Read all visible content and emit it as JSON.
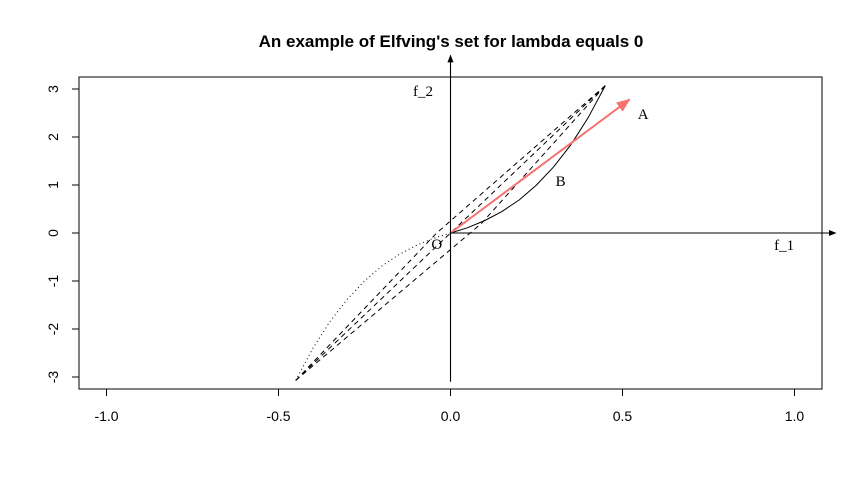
{
  "chart_data": {
    "type": "line",
    "title": "An example of Elfving's set for lambda equals 0",
    "xlabel": "",
    "ylabel": "",
    "xlim": [
      -1.08,
      1.08
    ],
    "ylim": [
      -3.25,
      3.25
    ],
    "x_ticks": [
      -1.0,
      -0.5,
      0.0,
      0.5,
      1.0
    ],
    "x_tick_labels": [
      "-1.0",
      "-0.5",
      "0.0",
      "0.5",
      "1.0"
    ],
    "y_ticks": [
      -3,
      -2,
      -1,
      0,
      1,
      2,
      3
    ],
    "y_tick_labels": [
      "-3",
      "-2",
      "-1",
      "0",
      "1",
      "2",
      "3"
    ],
    "grid": false,
    "reference_axes": {
      "f1": {
        "from": [
          0,
          0
        ],
        "to": [
          1.12,
          0
        ],
        "label": "f_1",
        "label_at": [
          0.97,
          -0.35
        ]
      },
      "f2": {
        "from": [
          0,
          -3.1
        ],
        "to": [
          0,
          3.7
        ],
        "label": "f_2",
        "label_at": [
          -0.08,
          2.85
        ]
      }
    },
    "annotations": [
      {
        "text": "O",
        "x": -0.04,
        "y": -0.33
      },
      {
        "text": "A",
        "x": 0.56,
        "y": 2.38
      },
      {
        "text": "B",
        "x": 0.32,
        "y": 0.98
      }
    ],
    "series": [
      {
        "style": "solid",
        "color": "#000000",
        "x": [
          0.0,
          0.05,
          0.1,
          0.15,
          0.2,
          0.25,
          0.3,
          0.35,
          0.4,
          0.45
        ],
        "y": [
          0.0,
          0.11,
          0.26,
          0.45,
          0.69,
          1.0,
          1.38,
          1.84,
          2.4,
          3.07
        ]
      },
      {
        "style": "dotted",
        "color": "#000000",
        "x": [
          0.0,
          -0.05,
          -0.1,
          -0.15,
          -0.2,
          -0.25,
          -0.3,
          -0.35,
          -0.4,
          -0.45
        ],
        "y": [
          0.0,
          -0.11,
          -0.26,
          -0.45,
          -0.69,
          -1.0,
          -1.38,
          -1.84,
          -2.4,
          -3.07
        ]
      },
      {
        "style": "dashed",
        "color": "#000000",
        "x": [
          -0.45,
          0.45
        ],
        "y": [
          -3.07,
          3.07
        ]
      },
      {
        "style": "dashed",
        "color": "#000000",
        "x": [
          -0.45,
          -0.04,
          0.45
        ],
        "y": [
          -3.07,
          0.0,
          3.07
        ]
      },
      {
        "style": "dashed",
        "color": "#000000",
        "x": [
          -0.45,
          0.09,
          0.45
        ],
        "y": [
          -3.07,
          0.2,
          3.07
        ]
      },
      {
        "style": "arrow",
        "color": "#f87171",
        "x": [
          0.0,
          0.52
        ],
        "y": [
          0.0,
          2.78
        ]
      }
    ]
  }
}
